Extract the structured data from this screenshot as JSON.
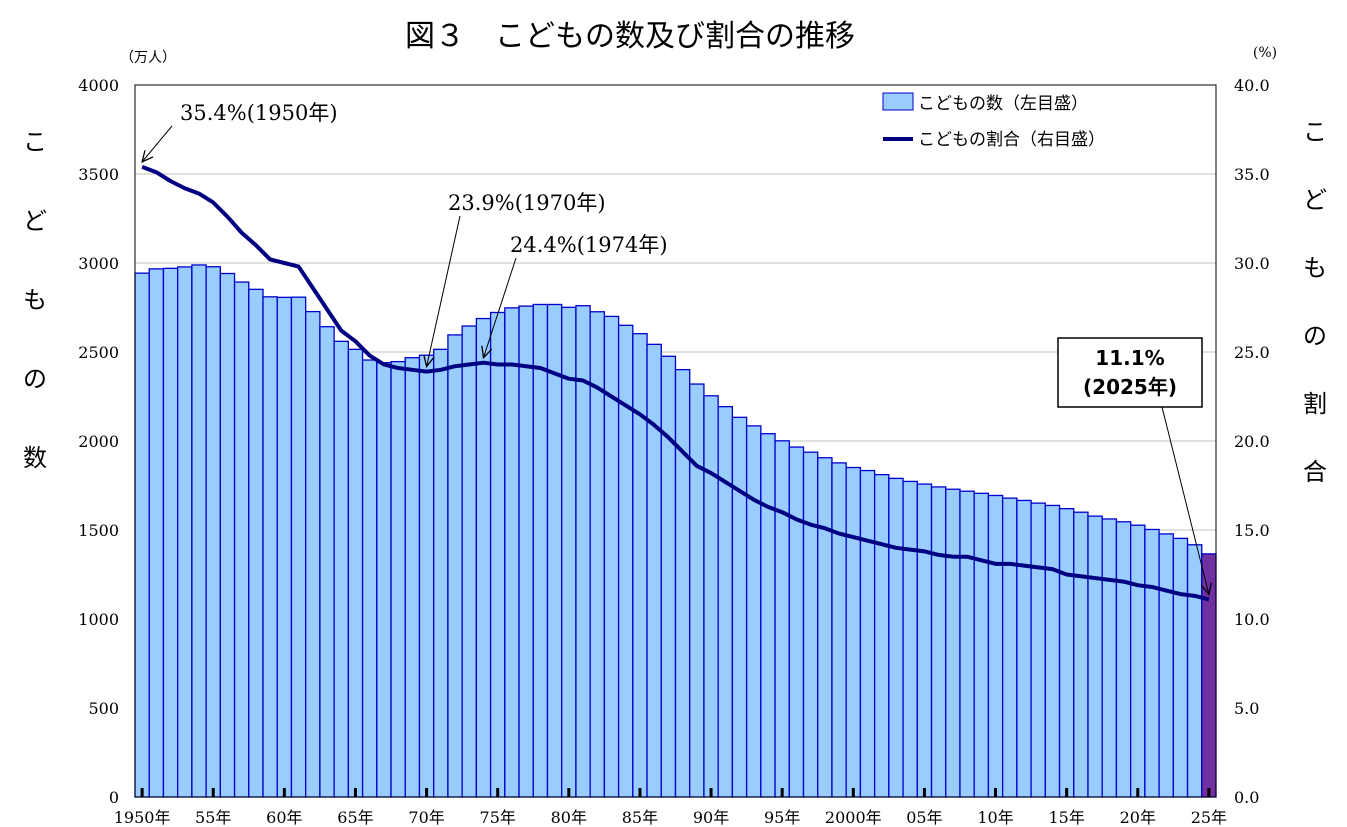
{
  "chart_data": {
    "type": "bar+line",
    "title": "図３　こどもの数及び割合の推移",
    "left_axis": {
      "unit": "（万人）",
      "label_chars": [
        "こ",
        "ど",
        "も",
        "の",
        "数"
      ],
      "ylim": [
        0,
        4000
      ],
      "ticks": [
        "4000",
        "3500",
        "3000",
        "2500",
        "2000",
        "1500",
        "1000",
        "500",
        "0"
      ]
    },
    "right_axis": {
      "unit": "(%)",
      "label_chars": [
        "こ",
        "ど",
        "も",
        "の",
        "割",
        "合"
      ],
      "ylim": [
        0,
        40
      ],
      "ticks": [
        "40.0",
        "35.0",
        "30.0",
        "25.0",
        "20.0",
        "15.0",
        "10.0",
        "5.0",
        "0.0"
      ]
    },
    "x": {
      "start_year": 1950,
      "end_year": 2025,
      "tick_labels": [
        "1950年",
        "55年",
        "60年",
        "65年",
        "70年",
        "75年",
        "80年",
        "85年",
        "90年",
        "95年",
        "2000年",
        "05年",
        "10年",
        "15年",
        "20年",
        "25年"
      ]
    },
    "grid": true,
    "legend": {
      "position": "top-right",
      "bar": "こどもの数（左目盛）",
      "line": "こどもの割合（右目盛）"
    },
    "colors": {
      "bar_fill": "#99ccff",
      "bar_stroke": "#0000cc",
      "highlight_fill": "#7030a0",
      "line": "#000080",
      "grid": "#c0c0c0"
    },
    "series": [
      {
        "name": "こどもの数（左目盛）",
        "type": "bar",
        "values": [
          2943,
          2967,
          2970,
          2978,
          2989,
          2979,
          2941,
          2893,
          2852,
          2810,
          2807,
          2808,
          2727,
          2642,
          2560,
          2515,
          2455,
          2440,
          2446,
          2468,
          2482,
          2515,
          2596,
          2646,
          2688,
          2722,
          2748,
          2758,
          2767,
          2767,
          2751,
          2760,
          2726,
          2700,
          2650,
          2603,
          2543,
          2476,
          2401,
          2320,
          2254,
          2193,
          2133,
          2085,
          2041,
          2001,
          1966,
          1937,
          1906,
          1877,
          1851,
          1834,
          1811,
          1790,
          1773,
          1758,
          1742,
          1729,
          1718,
          1706,
          1694,
          1679,
          1666,
          1651,
          1638,
          1620,
          1600,
          1578,
          1562,
          1546,
          1527,
          1503,
          1478,
          1453,
          1417,
          1366
        ],
        "highlight_last": true
      },
      {
        "name": "こどもの割合（右目盛）",
        "type": "line",
        "values": [
          35.4,
          35.1,
          34.6,
          34.2,
          33.9,
          33.4,
          32.6,
          31.7,
          31.0,
          30.2,
          30.0,
          29.8,
          28.6,
          27.4,
          26.2,
          25.6,
          24.8,
          24.3,
          24.1,
          24.0,
          23.9,
          24.0,
          24.2,
          24.3,
          24.4,
          24.3,
          24.3,
          24.2,
          24.1,
          23.8,
          23.5,
          23.4,
          23.0,
          22.5,
          22.0,
          21.5,
          20.9,
          20.2,
          19.4,
          18.6,
          18.2,
          17.7,
          17.2,
          16.7,
          16.3,
          16.0,
          15.6,
          15.3,
          15.1,
          14.8,
          14.6,
          14.4,
          14.2,
          14.0,
          13.9,
          13.8,
          13.6,
          13.5,
          13.5,
          13.3,
          13.1,
          13.1,
          13.0,
          12.9,
          12.8,
          12.5,
          12.4,
          12.3,
          12.2,
          12.1,
          11.9,
          11.8,
          11.6,
          11.4,
          11.3,
          11.1
        ]
      }
    ],
    "annotations": [
      {
        "text": "35.4%(1950年)",
        "year": 1950,
        "value": 35.4
      },
      {
        "text": "23.9%(1970年)",
        "year": 1970,
        "value": 23.9
      },
      {
        "text": "24.4%(1974年)",
        "year": 1974,
        "value": 24.4
      }
    ],
    "callout": {
      "line1": "11.1%",
      "line2": "(2025年)",
      "year": 2025,
      "value": 11.1
    }
  }
}
